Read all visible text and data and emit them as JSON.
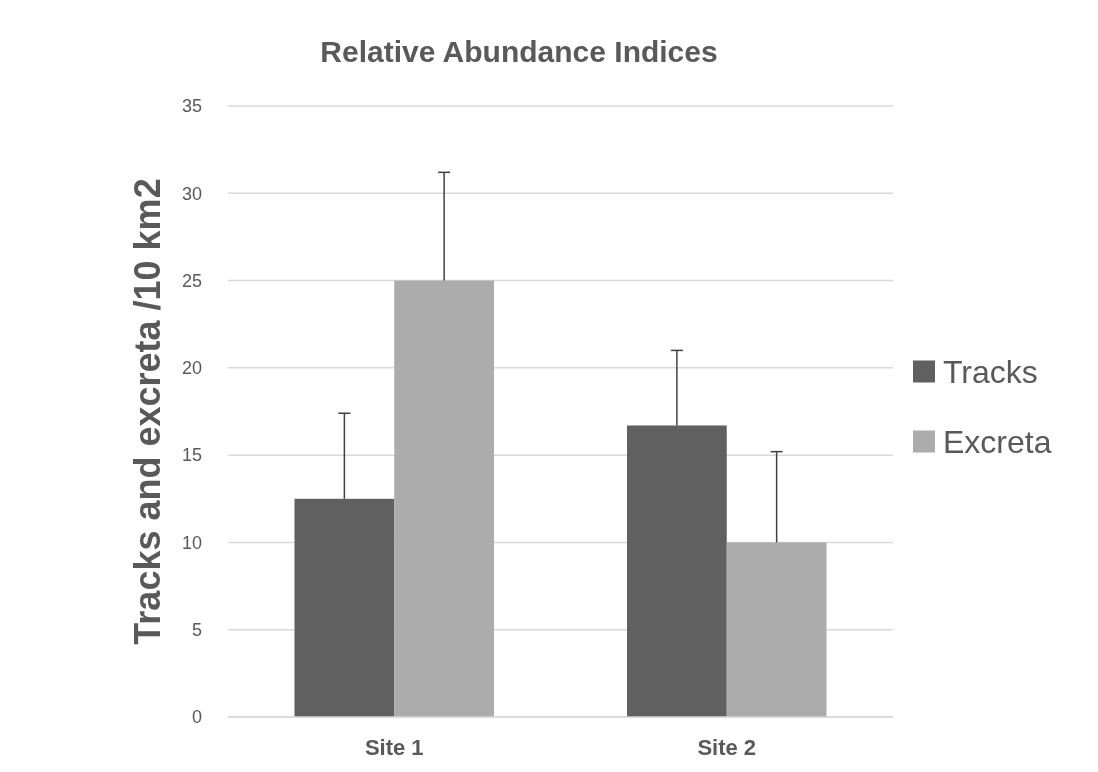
{
  "chart_data": {
    "type": "bar",
    "title": "Relative Abundance Indices",
    "ylabel": "Tracks and excreta /10 km2",
    "categories": [
      "Site 1",
      "Site 2"
    ],
    "series": [
      {
        "name": "Tracks",
        "color": "#606060",
        "values": [
          12.5,
          16.7
        ],
        "errors": [
          [
            12.5,
            17.4
          ],
          [
            16.7,
            21.0
          ]
        ]
      },
      {
        "name": "Excreta",
        "color": "#acacac",
        "values": [
          25,
          10
        ],
        "errors": [
          [
            25,
            31.2
          ],
          [
            10,
            15.2
          ]
        ]
      }
    ],
    "ylim": [
      0,
      35
    ],
    "yticks": [
      0,
      5,
      10,
      15,
      20,
      25,
      30,
      35
    ],
    "grid": "y",
    "legend": "right"
  }
}
